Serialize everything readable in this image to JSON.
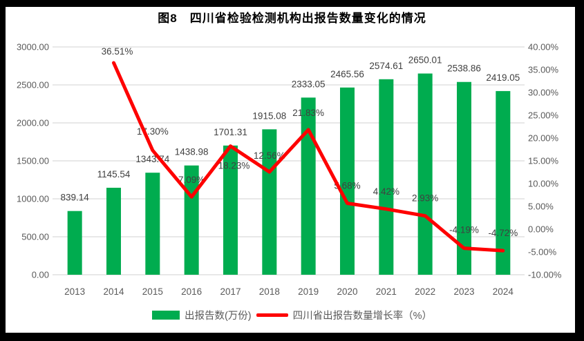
{
  "title": "图8　四川省检验检测机构出报告数量变化的情况",
  "colors": {
    "bar": "#00AC4F",
    "line": "#FE0000",
    "gridline": "#D9D9D9",
    "axis_text": "#595959",
    "data_label": "#404040",
    "title_text": "#000000",
    "frame": "#000000",
    "background": "#FFFFFF"
  },
  "legend": {
    "bar_label": "出报告数(万份)",
    "line_label": "四川省出报告数量增长率（%）"
  },
  "chart_data": {
    "type": "bar+line",
    "categories": [
      "2013",
      "2014",
      "2015",
      "2016",
      "2017",
      "2018",
      "2019",
      "2020",
      "2021",
      "2022",
      "2023",
      "2024"
    ],
    "series": [
      {
        "name": "出报告数(万份)",
        "type": "bar",
        "axis": "left",
        "values": [
          839.14,
          1145.54,
          1343.74,
          1438.98,
          1701.31,
          1915.08,
          2333.05,
          2465.56,
          2574.61,
          2650.01,
          2538.86,
          2419.05
        ],
        "data_labels": [
          "839.14",
          "1145.54",
          "1343.74",
          "1438.98",
          "1701.31",
          "1915.08",
          "2333.05",
          "2465.56",
          "2574.61",
          "2650.01",
          "2538.86",
          "2419.05"
        ]
      },
      {
        "name": "四川省出报告数量增长率（%）",
        "type": "line",
        "axis": "right",
        "values": [
          null,
          36.51,
          17.3,
          7.09,
          18.23,
          12.56,
          21.83,
          5.68,
          4.42,
          2.93,
          -4.19,
          -4.72
        ],
        "data_labels": [
          null,
          "36.51%",
          "17.30%",
          "7.09%",
          "18.23%",
          "12.56%",
          "21.83%",
          "5.68%",
          "4.42%",
          "2.93%",
          "-4.19%",
          "-4.72%"
        ]
      }
    ],
    "left_axis": {
      "min": 0,
      "max": 3000,
      "step": 500,
      "tick_labels": [
        "3000.00",
        "2500.00",
        "2000.00",
        "1500.00",
        "1000.00",
        "500.00",
        "0.00"
      ]
    },
    "right_axis": {
      "min": -10,
      "max": 40,
      "step": 5,
      "tick_labels": [
        "40.00%",
        "35.00%",
        "30.00%",
        "25.00%",
        "20.00%",
        "15.00%",
        "10.00%",
        "5.00%",
        "0.00%",
        "-5.00%",
        "-10.00%"
      ]
    },
    "grid": "horizontal",
    "legend_position": "bottom"
  }
}
